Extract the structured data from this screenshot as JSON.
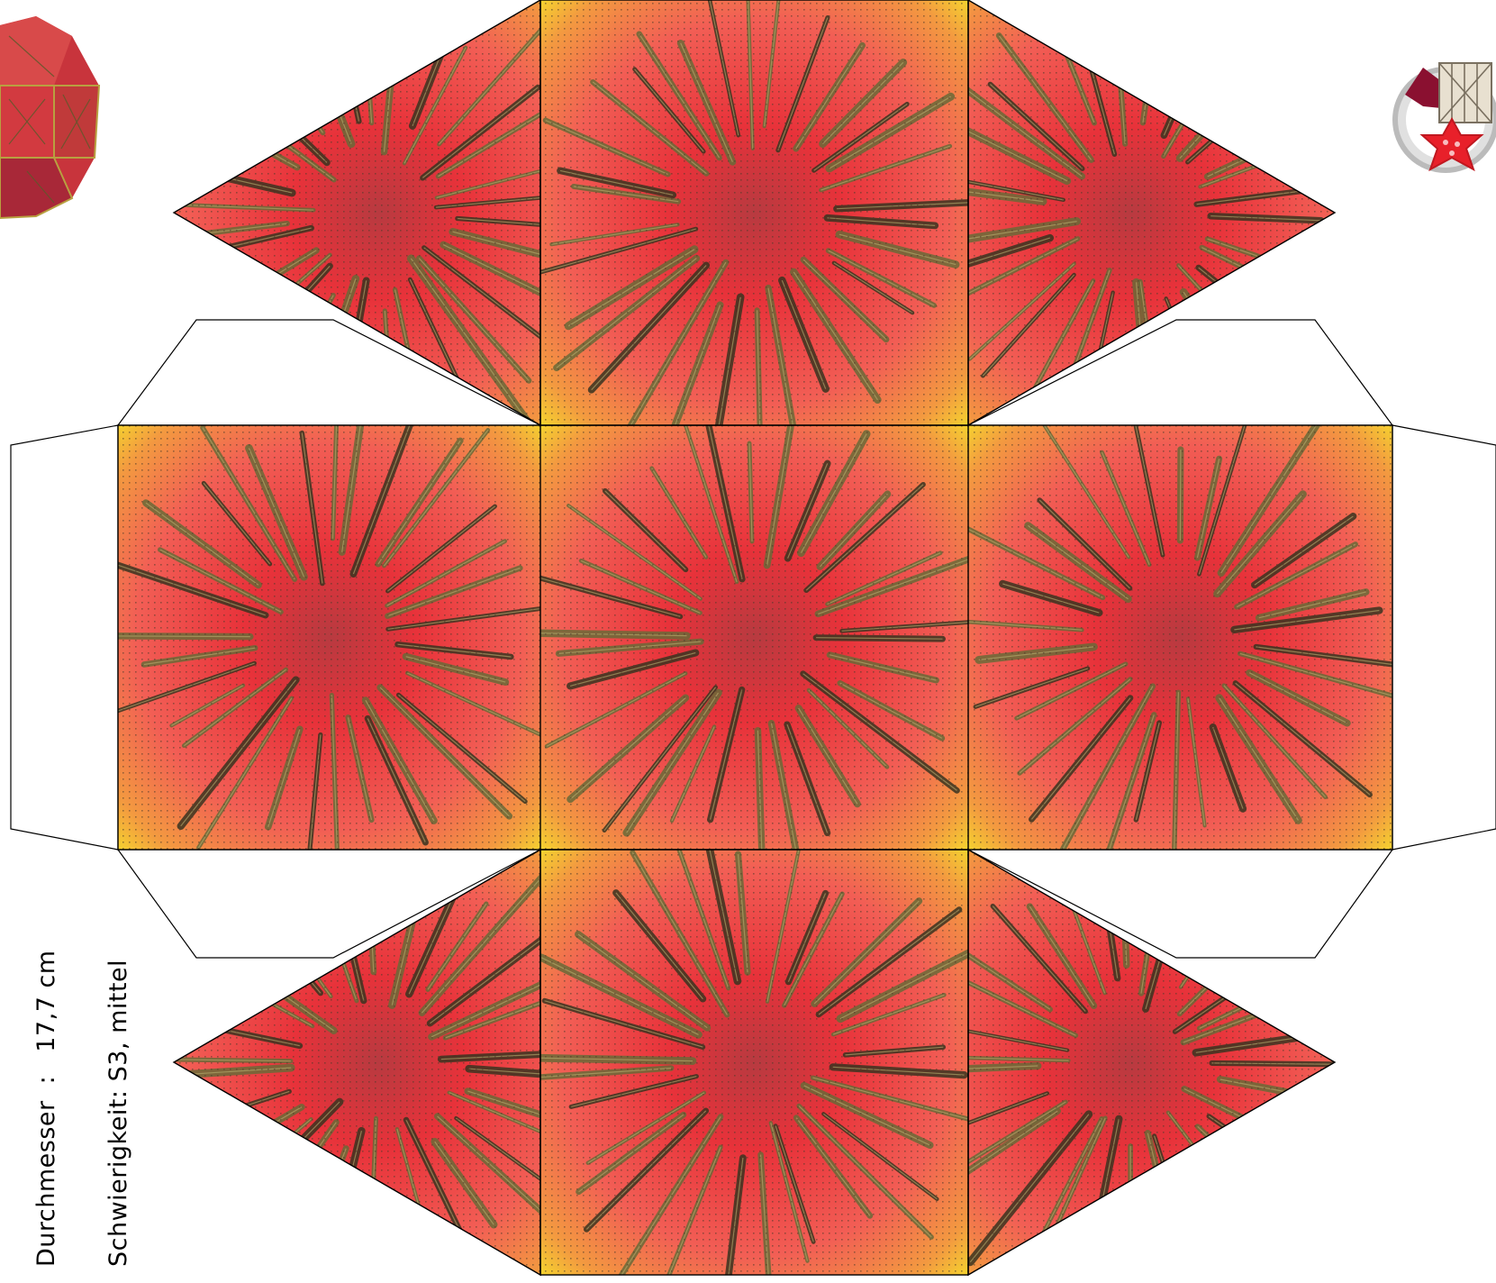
{
  "info": {
    "diameter_label": "Durchmesser",
    "diameter_separator": ":",
    "diameter_value": "17,7 cm",
    "difficulty": "Schwierigkeit: S3, mittel"
  },
  "colors": {
    "face_center": "#e8323a",
    "face_mid": "#f05a4a",
    "face_edge": "#f4e02a",
    "face_corner": "#f0a030",
    "stroke_color": "#5a5a2a",
    "outline": "#000000",
    "paper": "#ffffff",
    "logo_ring": "#c8c8c8",
    "logo_star": "#e8202a",
    "logo_flag": "#8a1030"
  },
  "icons": {
    "preview": "rounded-polyhedron-preview-icon",
    "logo": "star-and-drum-logo-icon"
  }
}
